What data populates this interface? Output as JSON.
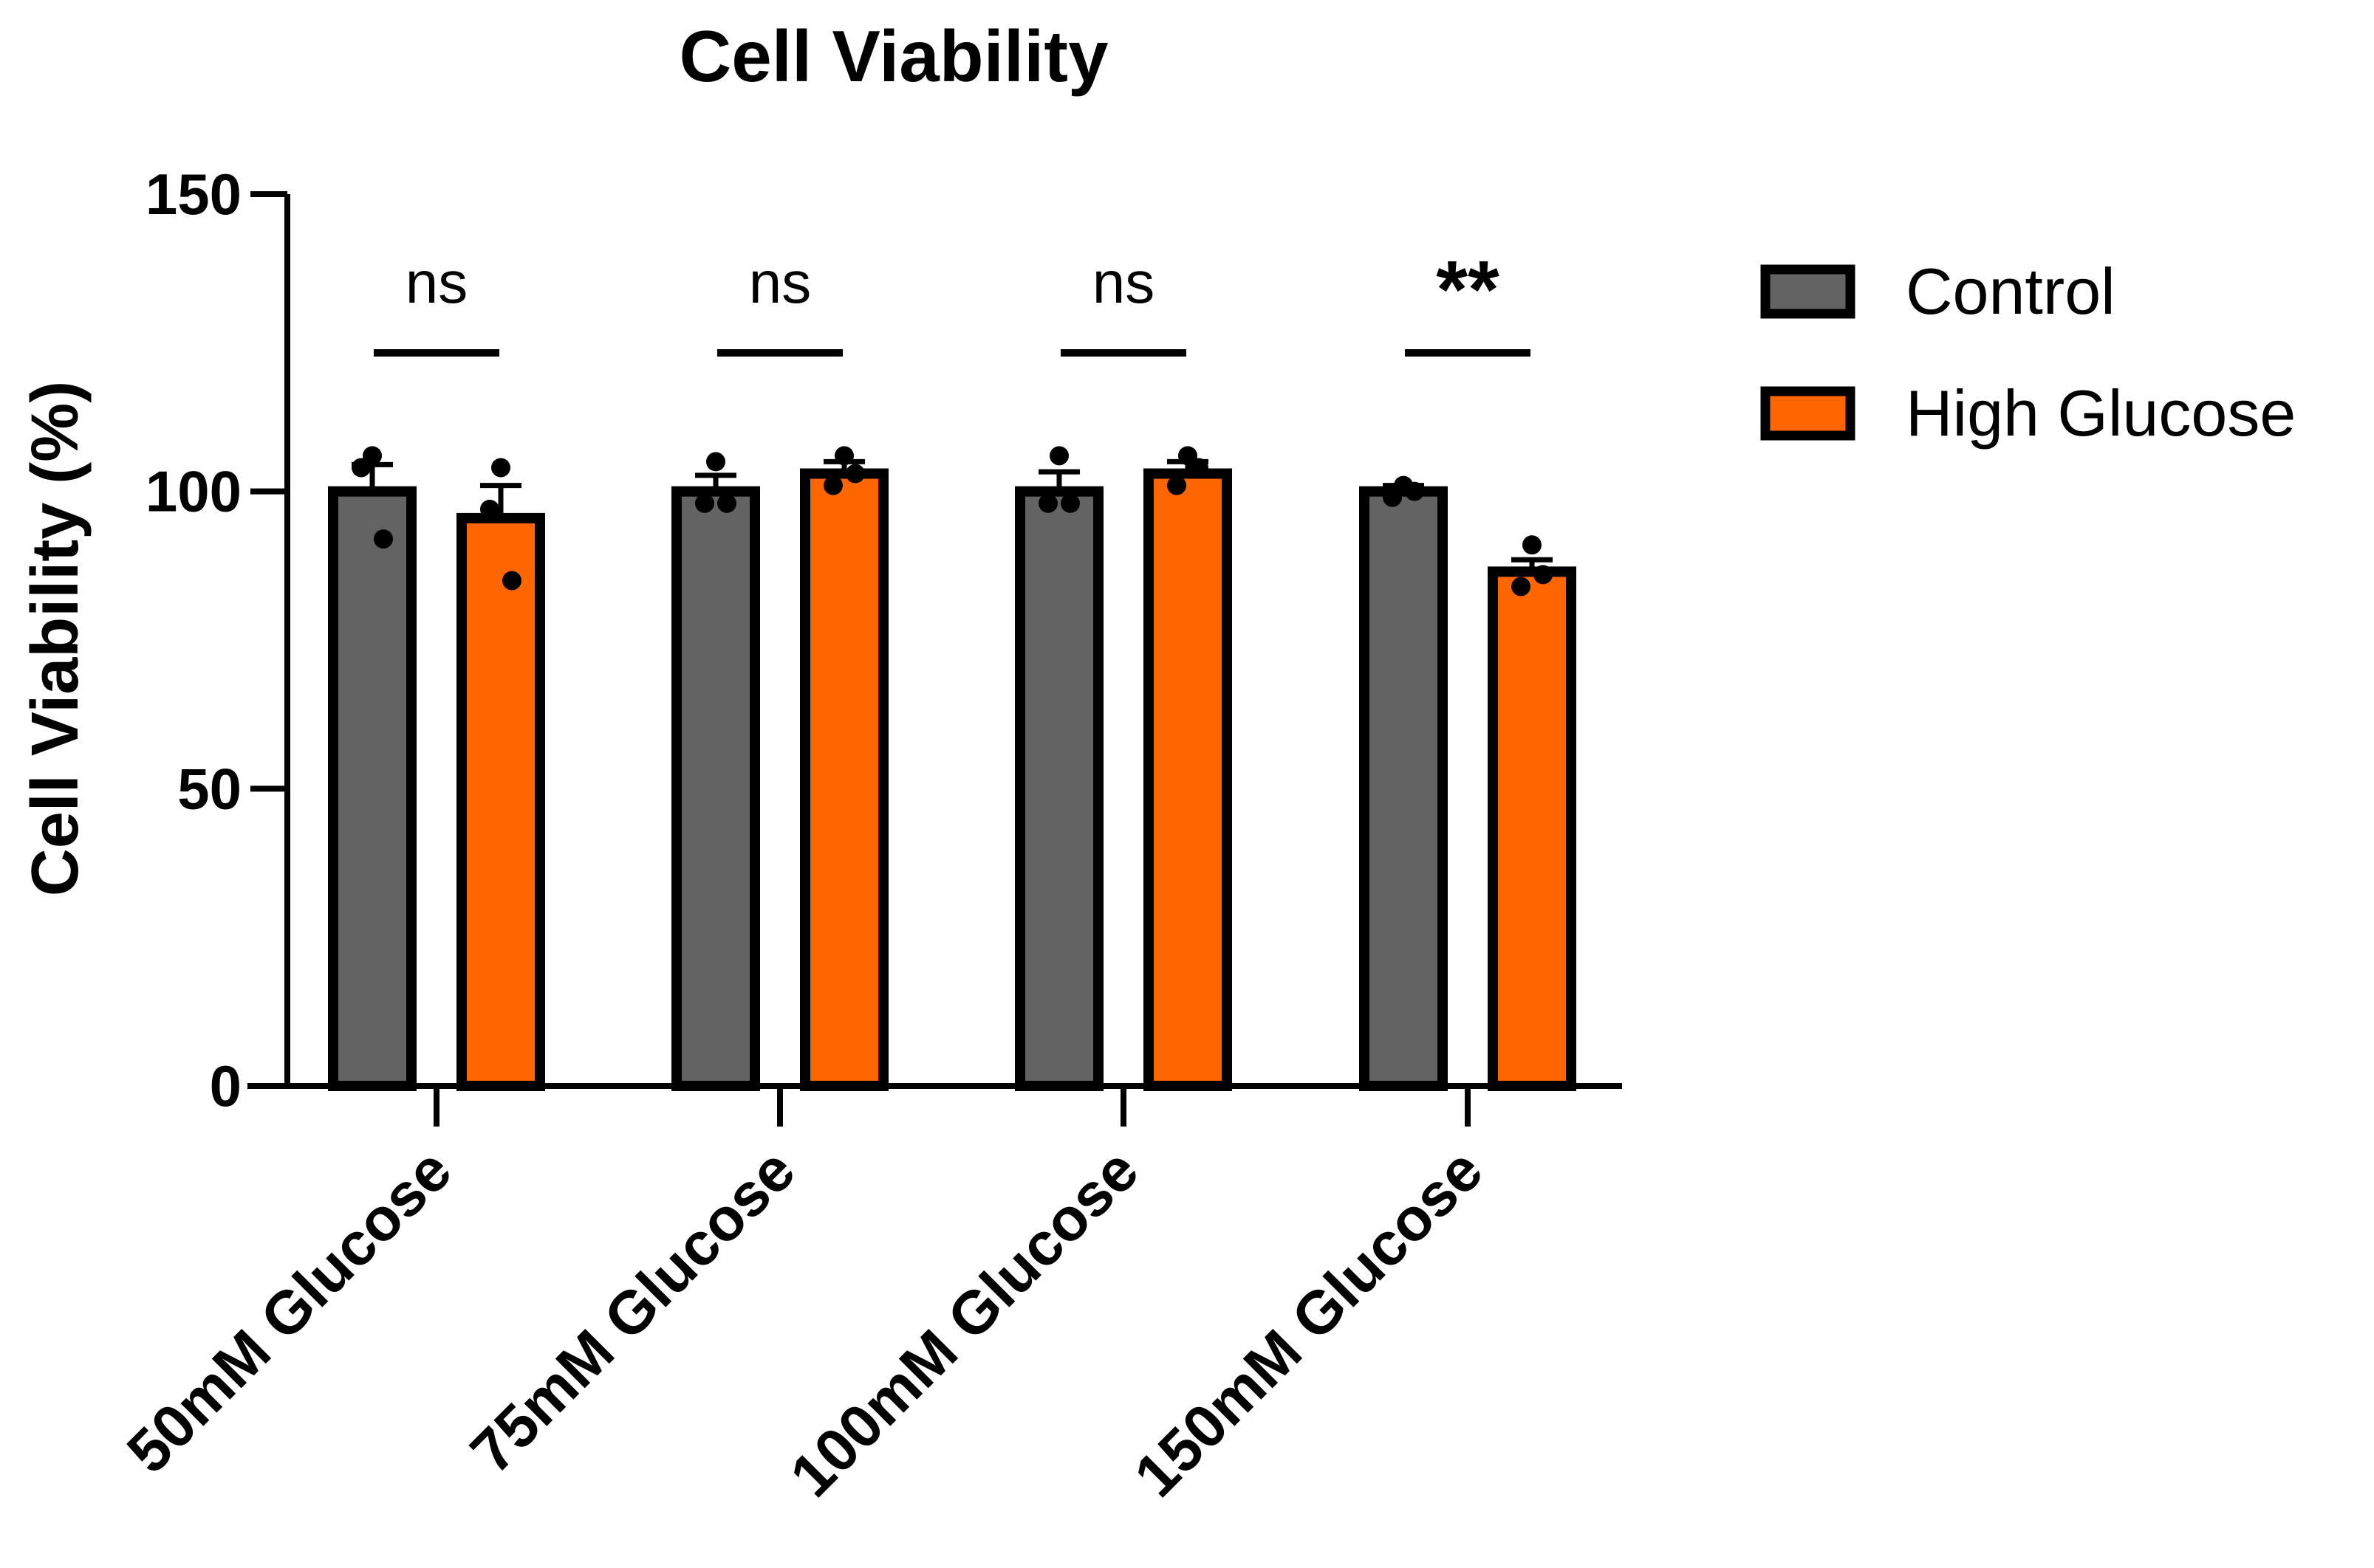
{
  "chart_data": {
    "type": "bar",
    "title": "Cell Viability",
    "xlabel": "",
    "ylabel": "Cell Viability (%)",
    "ylim": [
      0,
      150
    ],
    "yticks": [
      0,
      50,
      100,
      150
    ],
    "grid": false,
    "legend_position": "top-right",
    "categories": [
      "50mM Glucose",
      "75mM Glucose",
      "100mM Glucose",
      "150mM Glucose"
    ],
    "series": [
      {
        "name": "Control",
        "color": "#636363",
        "values": [
          100,
          100,
          100,
          100
        ],
        "errors": [
          4.5,
          2.7,
          3.3,
          1.0
        ],
        "points": [
          [
            106,
            104,
            92
          ],
          [
            105,
            98,
            98
          ],
          [
            106,
            98,
            98
          ],
          [
            101,
            99,
            100
          ]
        ]
      },
      {
        "name": "High Glucose",
        "color": "#ff6600",
        "values": [
          95.5,
          103,
          103,
          86.5
        ],
        "errors": [
          5.5,
          2.0,
          2.0,
          2.0
        ],
        "points": [
          [
            104,
            97,
            85
          ],
          [
            106,
            101,
            103
          ],
          [
            106,
            101,
            104
          ],
          [
            91,
            84,
            86
          ]
        ]
      }
    ],
    "significance": [
      "ns",
      "ns",
      "ns",
      "**"
    ]
  }
}
